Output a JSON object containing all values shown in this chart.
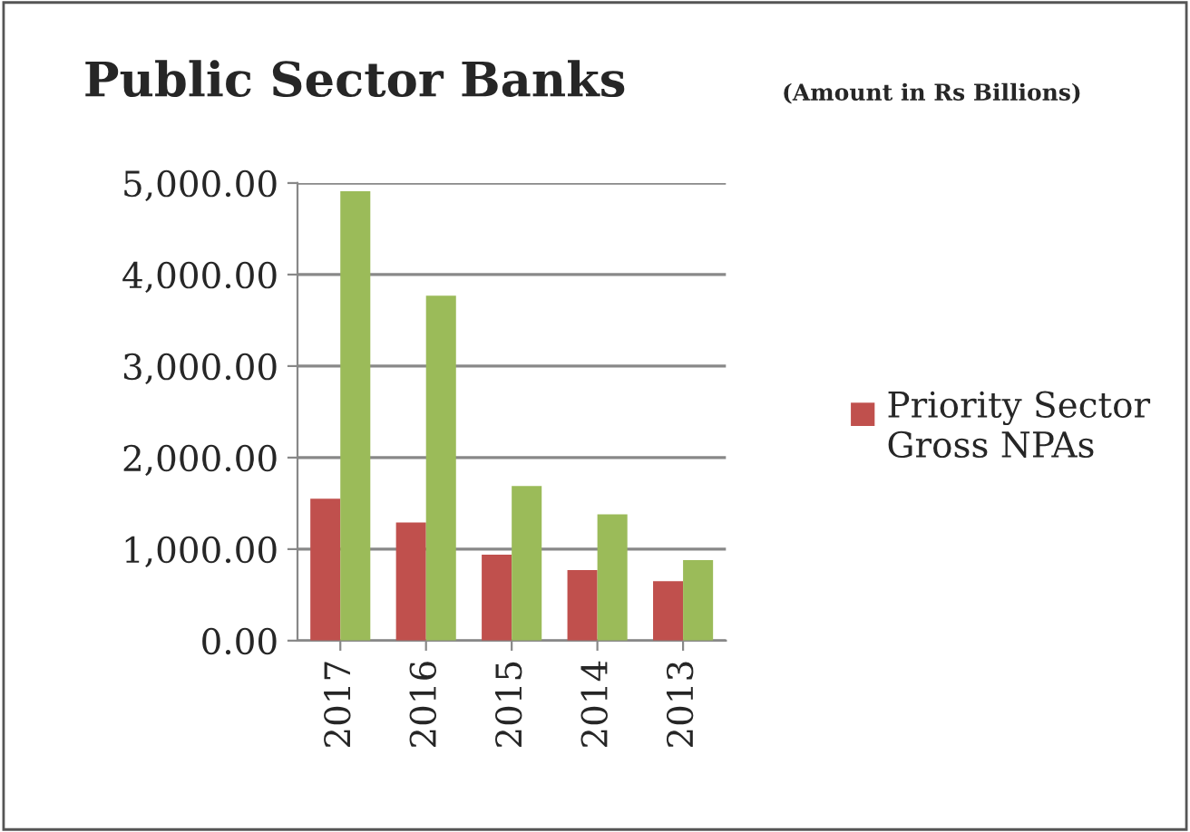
{
  "chart_data": {
    "type": "bar",
    "title": "Public Sector Banks",
    "subtitle": "(Amount in Rs Billions)",
    "categories": [
      "2017",
      "2016",
      "2015",
      "2014",
      "2013"
    ],
    "series": [
      {
        "name": "Priority Sector Gross NPAs",
        "color": "#c0504d",
        "values": [
          1550,
          1290,
          940,
          770,
          650
        ]
      },
      {
        "color": "#9bbb59",
        "values": [
          4910,
          3770,
          1690,
          1380,
          880
        ]
      }
    ],
    "ylim": [
      0,
      5000
    ],
    "yticks": [
      {
        "value": 0,
        "label": "0.00"
      },
      {
        "value": 1000,
        "label": "1,000.00"
      },
      {
        "value": 2000,
        "label": "2,000.00"
      },
      {
        "value": 3000,
        "label": "3,000.00"
      },
      {
        "value": 4000,
        "label": "4,000.00"
      },
      {
        "value": 5000,
        "label": "5,000.00"
      }
    ],
    "grid": "y",
    "legend": "right"
  }
}
